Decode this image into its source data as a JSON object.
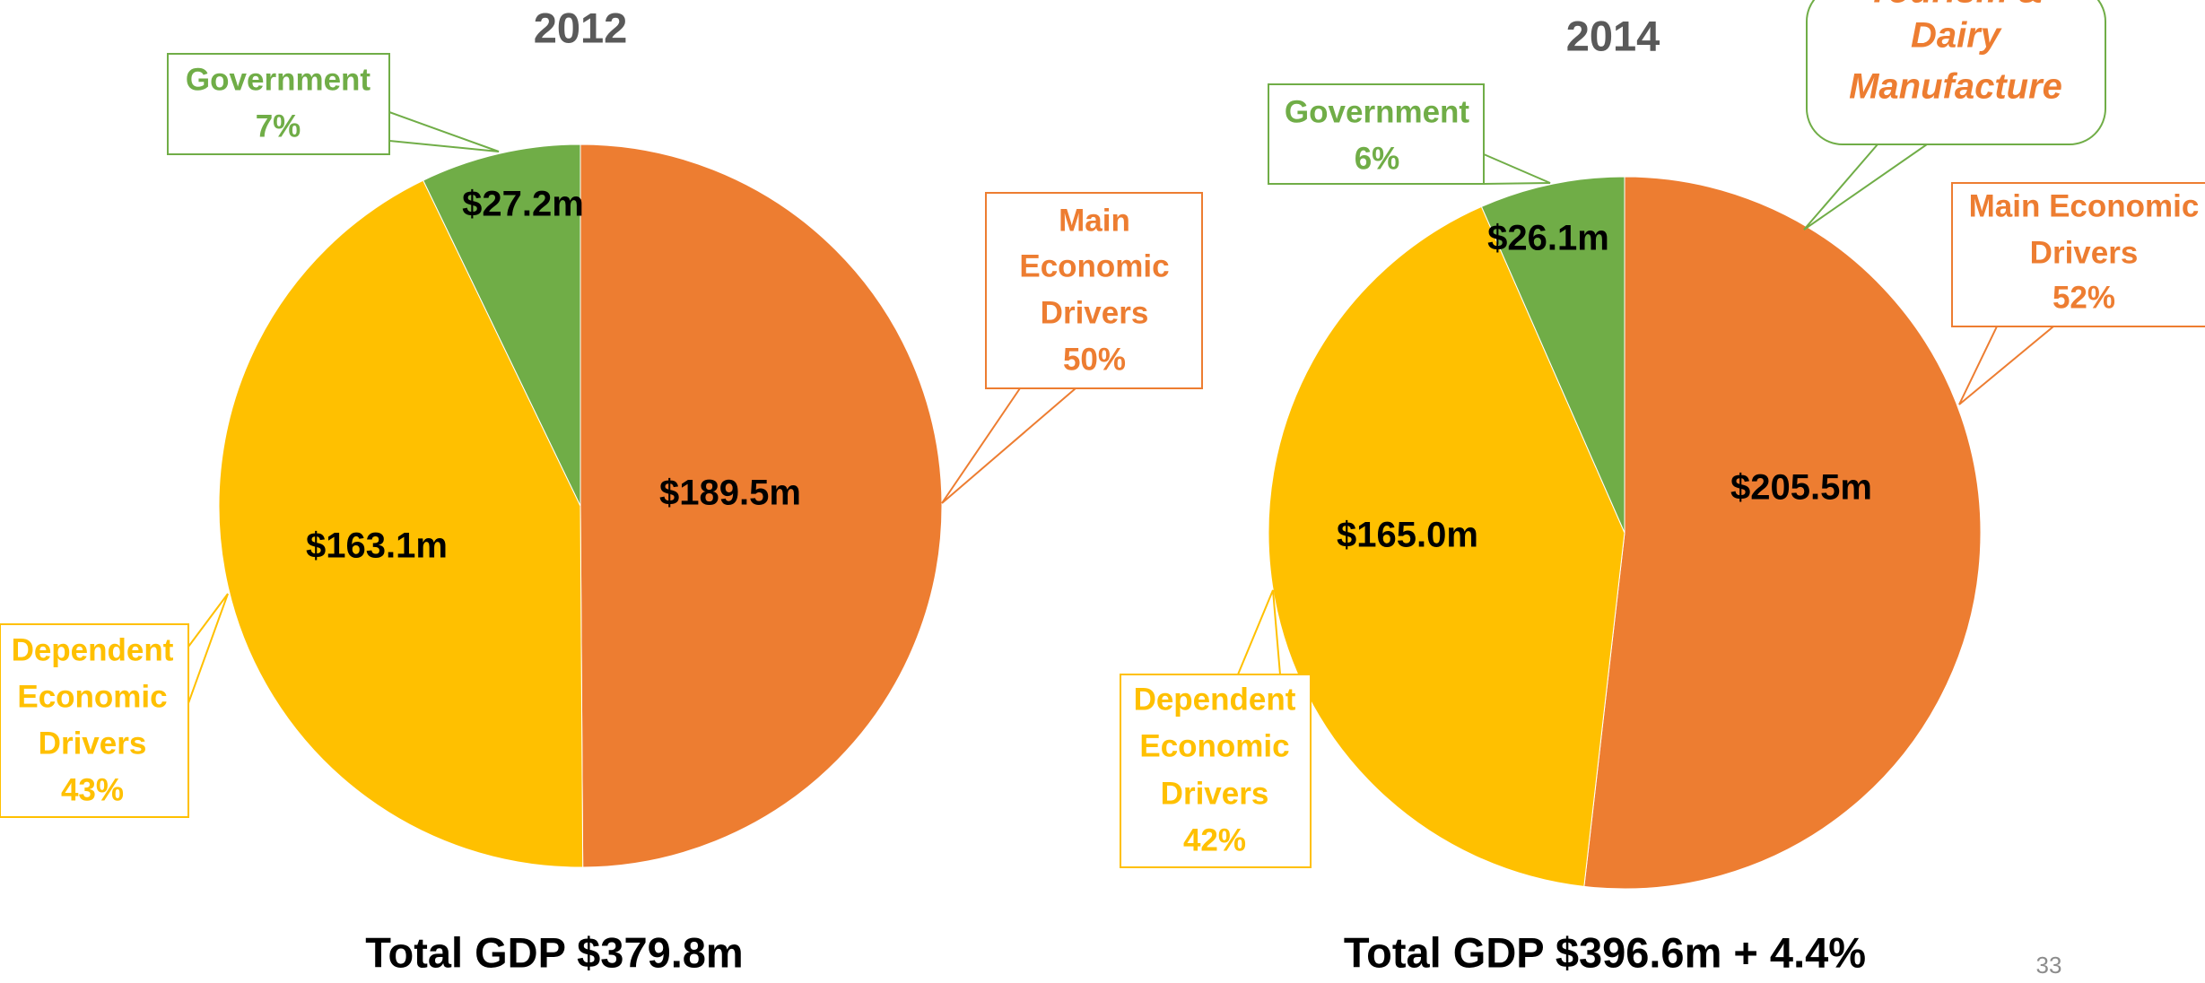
{
  "chart_data": [
    {
      "type": "pie",
      "title": "2012",
      "categories": [
        [
          "Main",
          "Economic",
          "Drivers"
        ],
        [
          "Dependent",
          "Economic",
          "Drivers"
        ],
        [
          "Government"
        ]
      ],
      "values": [
        189.5,
        163.1,
        27.2
      ],
      "value_labels": [
        "$189.5m",
        "$163.1m",
        "$27.2m"
      ],
      "percent_labels": [
        "50%",
        "43%",
        "7%"
      ],
      "colors": [
        "#ED7D31",
        "#FFC000",
        "#70AD47"
      ],
      "annotation": "Total GDP $379.8m"
    },
    {
      "type": "pie",
      "title": "2014",
      "categories": [
        [
          "Main Economic",
          "Drivers"
        ],
        [
          "Dependent",
          "Economic",
          "Drivers"
        ],
        [
          "Government"
        ]
      ],
      "values": [
        205.5,
        165.0,
        26.1
      ],
      "value_labels": [
        "$205.5m",
        "$165.0m",
        "$26.1m"
      ],
      "percent_labels": [
        "52%",
        "42%",
        "6%"
      ],
      "colors": [
        "#ED7D31",
        "#FFC000",
        "#70AD47"
      ],
      "annotation": "Total GDP $396.6m  + 4.4%",
      "callout": [
        "Tourism &",
        "Dairy",
        "Manufacture"
      ]
    }
  ],
  "page_number": 33
}
